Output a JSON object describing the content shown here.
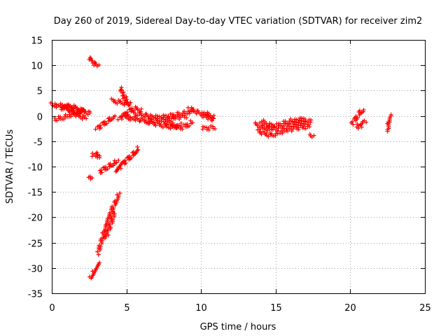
{
  "chart_data": {
    "type": "scatter",
    "title": "Day 260 of 2019, Sidereal Day-to-day VTEC variation (SDTVAR) for receiver zim2",
    "xlabel": "GPS time / hours",
    "ylabel": "SDTVAR / TECUs",
    "xlim": [
      0,
      25
    ],
    "ylim": [
      -35,
      15
    ],
    "xticks": [
      "0",
      "5",
      "10",
      "15",
      "20",
      "25"
    ],
    "yticks": [
      "15",
      "10",
      "5",
      "0",
      "-5",
      "-10",
      "-15",
      "-20",
      "-25",
      "-30",
      "-35"
    ],
    "grid": true,
    "marker": "+",
    "marker_color": "#ff0000",
    "segments": [
      {
        "x": [
          0.0,
          0.6,
          1.2,
          1.8,
          2.3,
          2.6
        ],
        "y": [
          2.2,
          2.0,
          1.6,
          1.2,
          0.8,
          0.5
        ]
      },
      {
        "x": [
          0.2,
          0.7,
          1.2,
          1.7,
          2.2
        ],
        "y": [
          -0.6,
          -0.4,
          0.1,
          0.6,
          1.1
        ]
      },
      {
        "x": [
          0.8,
          1.3,
          1.8,
          2.3
        ],
        "y": [
          1.8,
          0.8,
          0.0,
          -0.4
        ]
      },
      {
        "x": [
          0.6,
          1.1,
          1.6,
          2.1
        ],
        "y": [
          1.4,
          2.0,
          1.6,
          0.9
        ]
      },
      {
        "x": [
          2.5,
          2.8,
          3.1
        ],
        "y": [
          11.5,
          10.5,
          9.8
        ]
      },
      {
        "x": [
          3.0,
          3.5,
          4.0,
          4.2
        ],
        "y": [
          -2.5,
          -1.5,
          -0.5,
          0.0
        ]
      },
      {
        "x": [
          2.7,
          2.9,
          3.2,
          3.0
        ],
        "y": [
          -7.5,
          -7.8,
          -8.0,
          -7.6
        ]
      },
      {
        "x": [
          2.5,
          2.7
        ],
        "y": [
          -12.5,
          -12.0
        ]
      },
      {
        "x": [
          3.2,
          3.5,
          3.8,
          4.1,
          4.4
        ],
        "y": [
          -11.0,
          -10.5,
          -10.0,
          -9.5,
          -9.0
        ]
      },
      {
        "x": [
          4.3,
          4.7,
          5.1,
          5.5,
          5.8
        ],
        "y": [
          -11.0,
          -9.5,
          -8.5,
          -7.5,
          -6.5
        ]
      },
      {
        "x": [
          2.6,
          2.8,
          3.0,
          3.2
        ],
        "y": [
          -32.0,
          -31.0,
          -30.0,
          -29.0
        ]
      },
      {
        "x": [
          3.1,
          3.3,
          3.5,
          3.7,
          3.9,
          4.1,
          4.3,
          4.5
        ],
        "y": [
          -27.0,
          -25.0,
          -23.0,
          -21.0,
          -19.5,
          -18.0,
          -17.0,
          -15.5
        ]
      },
      {
        "x": [
          3.6,
          3.8,
          4.0,
          4.2
        ],
        "y": [
          -24.0,
          -22.5,
          -21.0,
          -19.0
        ]
      },
      {
        "x": [
          4.6,
          4.8,
          5.0,
          5.2
        ],
        "y": [
          5.5,
          4.0,
          3.0,
          2.0
        ]
      },
      {
        "x": [
          4.0,
          4.6,
          5.2
        ],
        "y": [
          3.0,
          2.7,
          2.4
        ]
      },
      {
        "x": [
          4.5,
          5.0,
          5.5,
          6.0
        ],
        "y": [
          -0.5,
          0.5,
          1.5,
          1.2
        ]
      },
      {
        "x": [
          4.9,
          5.6,
          6.3,
          7.0,
          7.7,
          8.4,
          9.0
        ],
        "y": [
          -0.2,
          -0.6,
          -1.0,
          -0.8,
          -0.6,
          -0.3,
          0.0
        ]
      },
      {
        "x": [
          5.5,
          6.2,
          6.9,
          7.6,
          8.3,
          9.0,
          9.5
        ],
        "y": [
          0.5,
          0.2,
          -0.3,
          -0.2,
          0.2,
          0.6,
          1.0
        ]
      },
      {
        "x": [
          6.4,
          7.0,
          7.6,
          8.2,
          8.6
        ],
        "y": [
          -1.2,
          -1.6,
          -2.0,
          -2.2,
          -1.8
        ]
      },
      {
        "x": [
          7.5,
          8.0,
          8.5,
          9.0,
          9.4
        ],
        "y": [
          -1.0,
          -1.5,
          -2.4,
          -2.0,
          -1.2
        ]
      },
      {
        "x": [
          9.2,
          9.6,
          10.0,
          10.4,
          10.8
        ],
        "y": [
          1.5,
          1.0,
          0.4,
          -0.2,
          -0.8
        ]
      },
      {
        "x": [
          10.1,
          10.5,
          10.9
        ],
        "y": [
          -2.5,
          -2.4,
          -2.3
        ]
      },
      {
        "x": [
          10.1,
          10.5,
          10.9
        ],
        "y": [
          0.6,
          0.2,
          -0.4
        ]
      },
      {
        "x": [
          13.6,
          14.1,
          14.6,
          15.1,
          15.6,
          16.1,
          16.6,
          17.1,
          17.4
        ],
        "y": [
          -1.6,
          -2.3,
          -2.6,
          -2.4,
          -2.0,
          -1.6,
          -1.4,
          -1.2,
          -1.0
        ]
      },
      {
        "x": [
          13.8,
          14.3,
          14.8,
          15.3,
          15.8,
          16.3,
          16.8,
          17.3
        ],
        "y": [
          -3.0,
          -3.6,
          -3.8,
          -3.2,
          -2.8,
          -2.4,
          -2.2,
          -2.0
        ]
      },
      {
        "x": [
          14.0,
          14.5,
          15.0,
          15.5,
          16.0,
          16.5,
          17.0
        ],
        "y": [
          -1.0,
          -1.8,
          -2.0,
          -1.5,
          -1.0,
          -0.8,
          -0.6
        ]
      },
      {
        "x": [
          17.3,
          17.5
        ],
        "y": [
          -3.8,
          -4.0
        ]
      },
      {
        "x": [
          20.1,
          20.3,
          20.5,
          20.7,
          20.9
        ],
        "y": [
          -1.5,
          -0.8,
          0.0,
          0.8,
          1.2
        ]
      },
      {
        "x": [
          20.4,
          20.6,
          20.8,
          21.0
        ],
        "y": [
          -2.0,
          -2.2,
          -1.5,
          -1.0
        ]
      },
      {
        "x": [
          22.5,
          22.6,
          22.7
        ],
        "y": [
          -2.8,
          -1.0,
          0.0
        ]
      }
    ]
  }
}
